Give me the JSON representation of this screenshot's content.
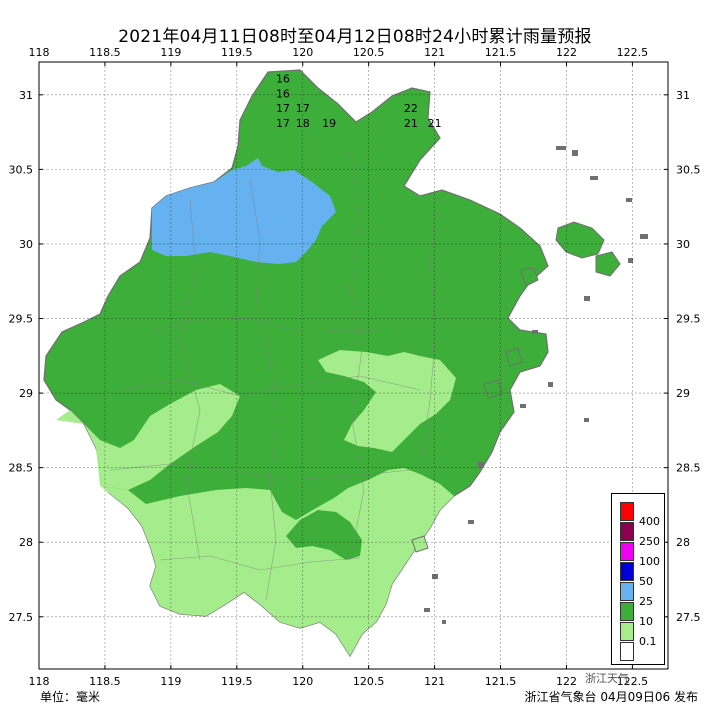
{
  "title": "2021年04月11日08时至04月12日08时24小时累计雨量预报",
  "footer": {
    "unit": "单位：毫米",
    "issuer": "浙江省气象台 04月09日06 发布",
    "watermark": "浙江天气"
  },
  "axes": {
    "lon_ticks": [
      "118",
      "118.5",
      "119",
      "119.5",
      "120",
      "120.5",
      "121",
      "121.5",
      "122",
      "122.5"
    ],
    "lat_ticks": [
      "31",
      "30.5",
      "30",
      "29.5",
      "29",
      "28.5",
      "28",
      "27.5"
    ]
  },
  "colors": {
    "band_0_1": "#a5ec8c",
    "band_10": "#3dae3a",
    "band_25": "#66b2f0",
    "band_50": "#0000d8",
    "band_100": "#f000f0",
    "band_250": "#8c0050",
    "band_400": "#ff0000",
    "sea": "#ffffff",
    "coast": "#808080"
  },
  "legend": [
    {
      "label": "400",
      "color": "#8c0050"
    },
    {
      "label": "250",
      "color": "#f000f0"
    },
    {
      "label": "100",
      "color": "#0000d8"
    },
    {
      "label": "50",
      "color": "#66b2f0"
    },
    {
      "label": "25",
      "color": "#3dae3a"
    },
    {
      "label": "10",
      "color": "#a5ec8c"
    },
    {
      "label": "0.1",
      "color": "#ffffff"
    }
  ],
  "legend_top_color": "#ff0000",
  "station_values": [
    {
      "lon": 119.85,
      "lat": 31.11,
      "v": "16"
    },
    {
      "lon": 119.85,
      "lat": 31.01,
      "v": "16"
    },
    {
      "lon": 119.85,
      "lat": 30.91,
      "v": "17"
    },
    {
      "lon": 120.0,
      "lat": 30.91,
      "v": "17"
    },
    {
      "lon": 120.82,
      "lat": 30.91,
      "v": "22"
    },
    {
      "lon": 119.85,
      "lat": 30.81,
      "v": "17"
    },
    {
      "lon": 120.0,
      "lat": 30.81,
      "v": "18"
    },
    {
      "lon": 120.2,
      "lat": 30.81,
      "v": "19"
    },
    {
      "lon": 120.82,
      "lat": 30.81,
      "v": "21"
    },
    {
      "lon": 121.0,
      "lat": 30.81,
      "v": "21"
    }
  ]
}
